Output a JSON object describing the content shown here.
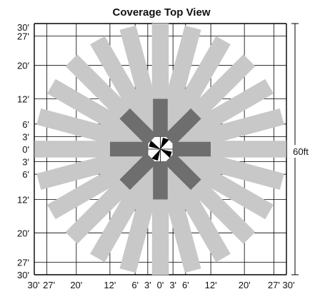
{
  "title": "Coverage Top View",
  "dimension_label": "60ft",
  "colors": {
    "far_zone": "#c8c8c8",
    "near_zone": "#6e6e6e",
    "center_arrows": "#000000",
    "grid": "#000000",
    "background": "#ffffff"
  },
  "x_tick_labels": [
    "30'",
    "27'",
    "20'",
    "12'",
    "6'",
    "3'",
    "0'",
    "3'",
    "6'",
    "12'",
    "20'",
    "27'",
    "30'"
  ],
  "y_tick_labels": [
    "30'",
    "27'",
    "20'",
    "12'",
    "6'",
    "3'",
    "0'",
    "3'",
    "6'",
    "12'",
    "20'",
    "27'",
    "30'"
  ],
  "tick_values_ft": [
    -30,
    -27,
    -20,
    -12,
    -6,
    -3,
    0,
    3,
    6,
    12,
    20,
    27,
    30
  ],
  "far_zone": {
    "count": 24,
    "inner_radius_ft": 3,
    "outer_radius_ft": 30,
    "beam_width_ft": 4
  },
  "near_zone": {
    "count": 8,
    "inner_radius_ft": 3,
    "outer_radius_ft": 12,
    "beam_width_ft": 3.5
  }
}
